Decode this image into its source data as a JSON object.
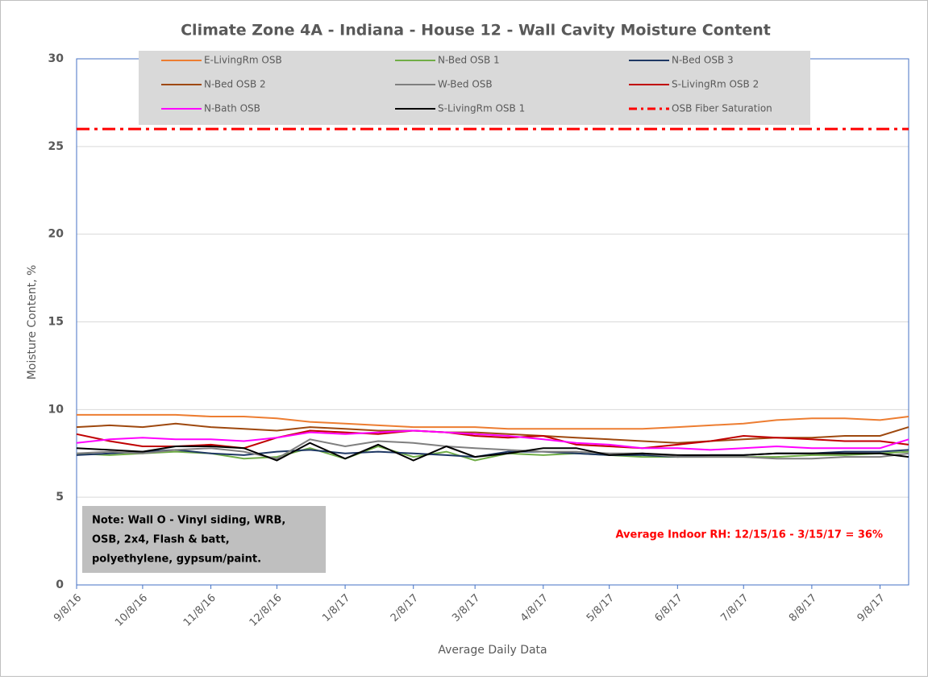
{
  "chart_data": {
    "type": "line",
    "title": "Climate Zone 4A - Indiana - House 12 - Wall Cavity Moisture Content",
    "x_label": "Average Daily Data",
    "y_label": "Moisture Content, %",
    "x": [
      "9/8/16",
      "9/23/16",
      "10/8/16",
      "10/23/16",
      "11/8/16",
      "11/23/16",
      "12/8/16",
      "12/23/16",
      "1/8/17",
      "1/23/17",
      "2/8/17",
      "2/23/17",
      "3/8/17",
      "3/23/17",
      "4/8/17",
      "4/23/17",
      "5/8/17",
      "5/23/17",
      "6/8/17",
      "6/23/17",
      "7/8/17",
      "7/23/17",
      "8/8/17",
      "8/23/17",
      "9/8/17",
      "9/21/17"
    ],
    "xlim": [
      "9/8/16",
      "9/21/17"
    ],
    "xticks": [
      "9/8/16",
      "10/8/16",
      "11/8/16",
      "12/8/16",
      "1/8/17",
      "2/8/17",
      "3/8/17",
      "4/8/17",
      "5/8/17",
      "6/8/17",
      "7/8/17",
      "8/8/17",
      "9/8/17"
    ],
    "ylim": [
      0,
      30
    ],
    "yticks": [
      0,
      5,
      10,
      15,
      20,
      25,
      30
    ],
    "grid": true,
    "series": [
      {
        "name": "E-LivingRm OSB",
        "color": "#ed7d31",
        "values": [
          9.7,
          9.7,
          9.7,
          9.7,
          9.6,
          9.6,
          9.5,
          9.3,
          9.2,
          9.1,
          9.0,
          9.0,
          9.0,
          8.9,
          8.9,
          8.9,
          8.9,
          8.9,
          9.0,
          9.1,
          9.2,
          9.4,
          9.5,
          9.5,
          9.4,
          9.6
        ]
      },
      {
        "name": "N-Bed OSB 1",
        "color": "#70ad47",
        "values": [
          7.5,
          7.4,
          7.5,
          7.6,
          7.5,
          7.2,
          7.3,
          7.8,
          7.2,
          7.9,
          7.3,
          7.6,
          7.1,
          7.5,
          7.4,
          7.5,
          7.4,
          7.3,
          7.3,
          7.3,
          7.3,
          7.3,
          7.4,
          7.4,
          7.5,
          7.6
        ]
      },
      {
        "name": "N-Bed OSB 3",
        "color": "#1f3864",
        "values": [
          7.4,
          7.5,
          7.6,
          7.7,
          7.5,
          7.4,
          7.6,
          7.7,
          7.5,
          7.6,
          7.5,
          7.4,
          7.3,
          7.6,
          7.6,
          7.5,
          7.4,
          7.4,
          7.3,
          7.4,
          7.4,
          7.5,
          7.5,
          7.6,
          7.6,
          7.7
        ]
      },
      {
        "name": "N-Bed OSB 2",
        "color": "#9e480e",
        "values": [
          9.0,
          9.1,
          9.0,
          9.2,
          9.0,
          8.9,
          8.8,
          9.0,
          8.9,
          8.8,
          8.8,
          8.7,
          8.7,
          8.6,
          8.5,
          8.4,
          8.3,
          8.2,
          8.1,
          8.2,
          8.3,
          8.4,
          8.4,
          8.5,
          8.5,
          9.0
        ]
      },
      {
        "name": "W-Bed OSB",
        "color": "#7f7f7f",
        "values": [
          7.5,
          7.6,
          7.5,
          7.7,
          7.8,
          7.6,
          7.2,
          8.3,
          7.9,
          8.2,
          8.1,
          7.9,
          7.8,
          7.7,
          7.6,
          7.6,
          7.5,
          7.5,
          7.3,
          7.3,
          7.3,
          7.2,
          7.2,
          7.3,
          7.3,
          7.5
        ]
      },
      {
        "name": "S-LivingRm OSB 2",
        "color": "#c00000",
        "values": [
          8.6,
          8.2,
          7.9,
          7.9,
          8.0,
          7.8,
          8.4,
          8.8,
          8.7,
          8.6,
          8.8,
          8.7,
          8.5,
          8.4,
          8.5,
          8.0,
          7.9,
          7.8,
          8.0,
          8.2,
          8.5,
          8.4,
          8.3,
          8.2,
          8.2,
          8.0
        ]
      },
      {
        "name": "N-Bath OSB",
        "color": "#ff00ff",
        "values": [
          8.1,
          8.3,
          8.4,
          8.3,
          8.3,
          8.2,
          8.4,
          8.7,
          8.6,
          8.7,
          8.8,
          8.7,
          8.6,
          8.5,
          8.3,
          8.1,
          8.0,
          7.8,
          7.8,
          7.7,
          7.8,
          7.9,
          7.8,
          7.8,
          7.8,
          8.3
        ]
      },
      {
        "name": "S-LivingRm OSB 1",
        "color": "#000000",
        "values": [
          7.8,
          7.7,
          7.6,
          7.9,
          7.9,
          7.8,
          7.1,
          8.1,
          7.2,
          8.0,
          7.1,
          7.9,
          7.3,
          7.5,
          7.8,
          7.8,
          7.4,
          7.5,
          7.4,
          7.4,
          7.4,
          7.5,
          7.5,
          7.5,
          7.5,
          7.3
        ]
      }
    ],
    "reference_line": {
      "name": "OSB Fiber Saturation",
      "value": 26,
      "color": "#ff0000"
    },
    "note": [
      "Note: Wall O - Vinyl siding, WRB,",
      "OSB, 2x4, Flash & batt,",
      "polyethylene, gypsum/paint."
    ],
    "annotation": "Average Indoor RH: 12/15/16 - 3/15/17 = 36%"
  }
}
